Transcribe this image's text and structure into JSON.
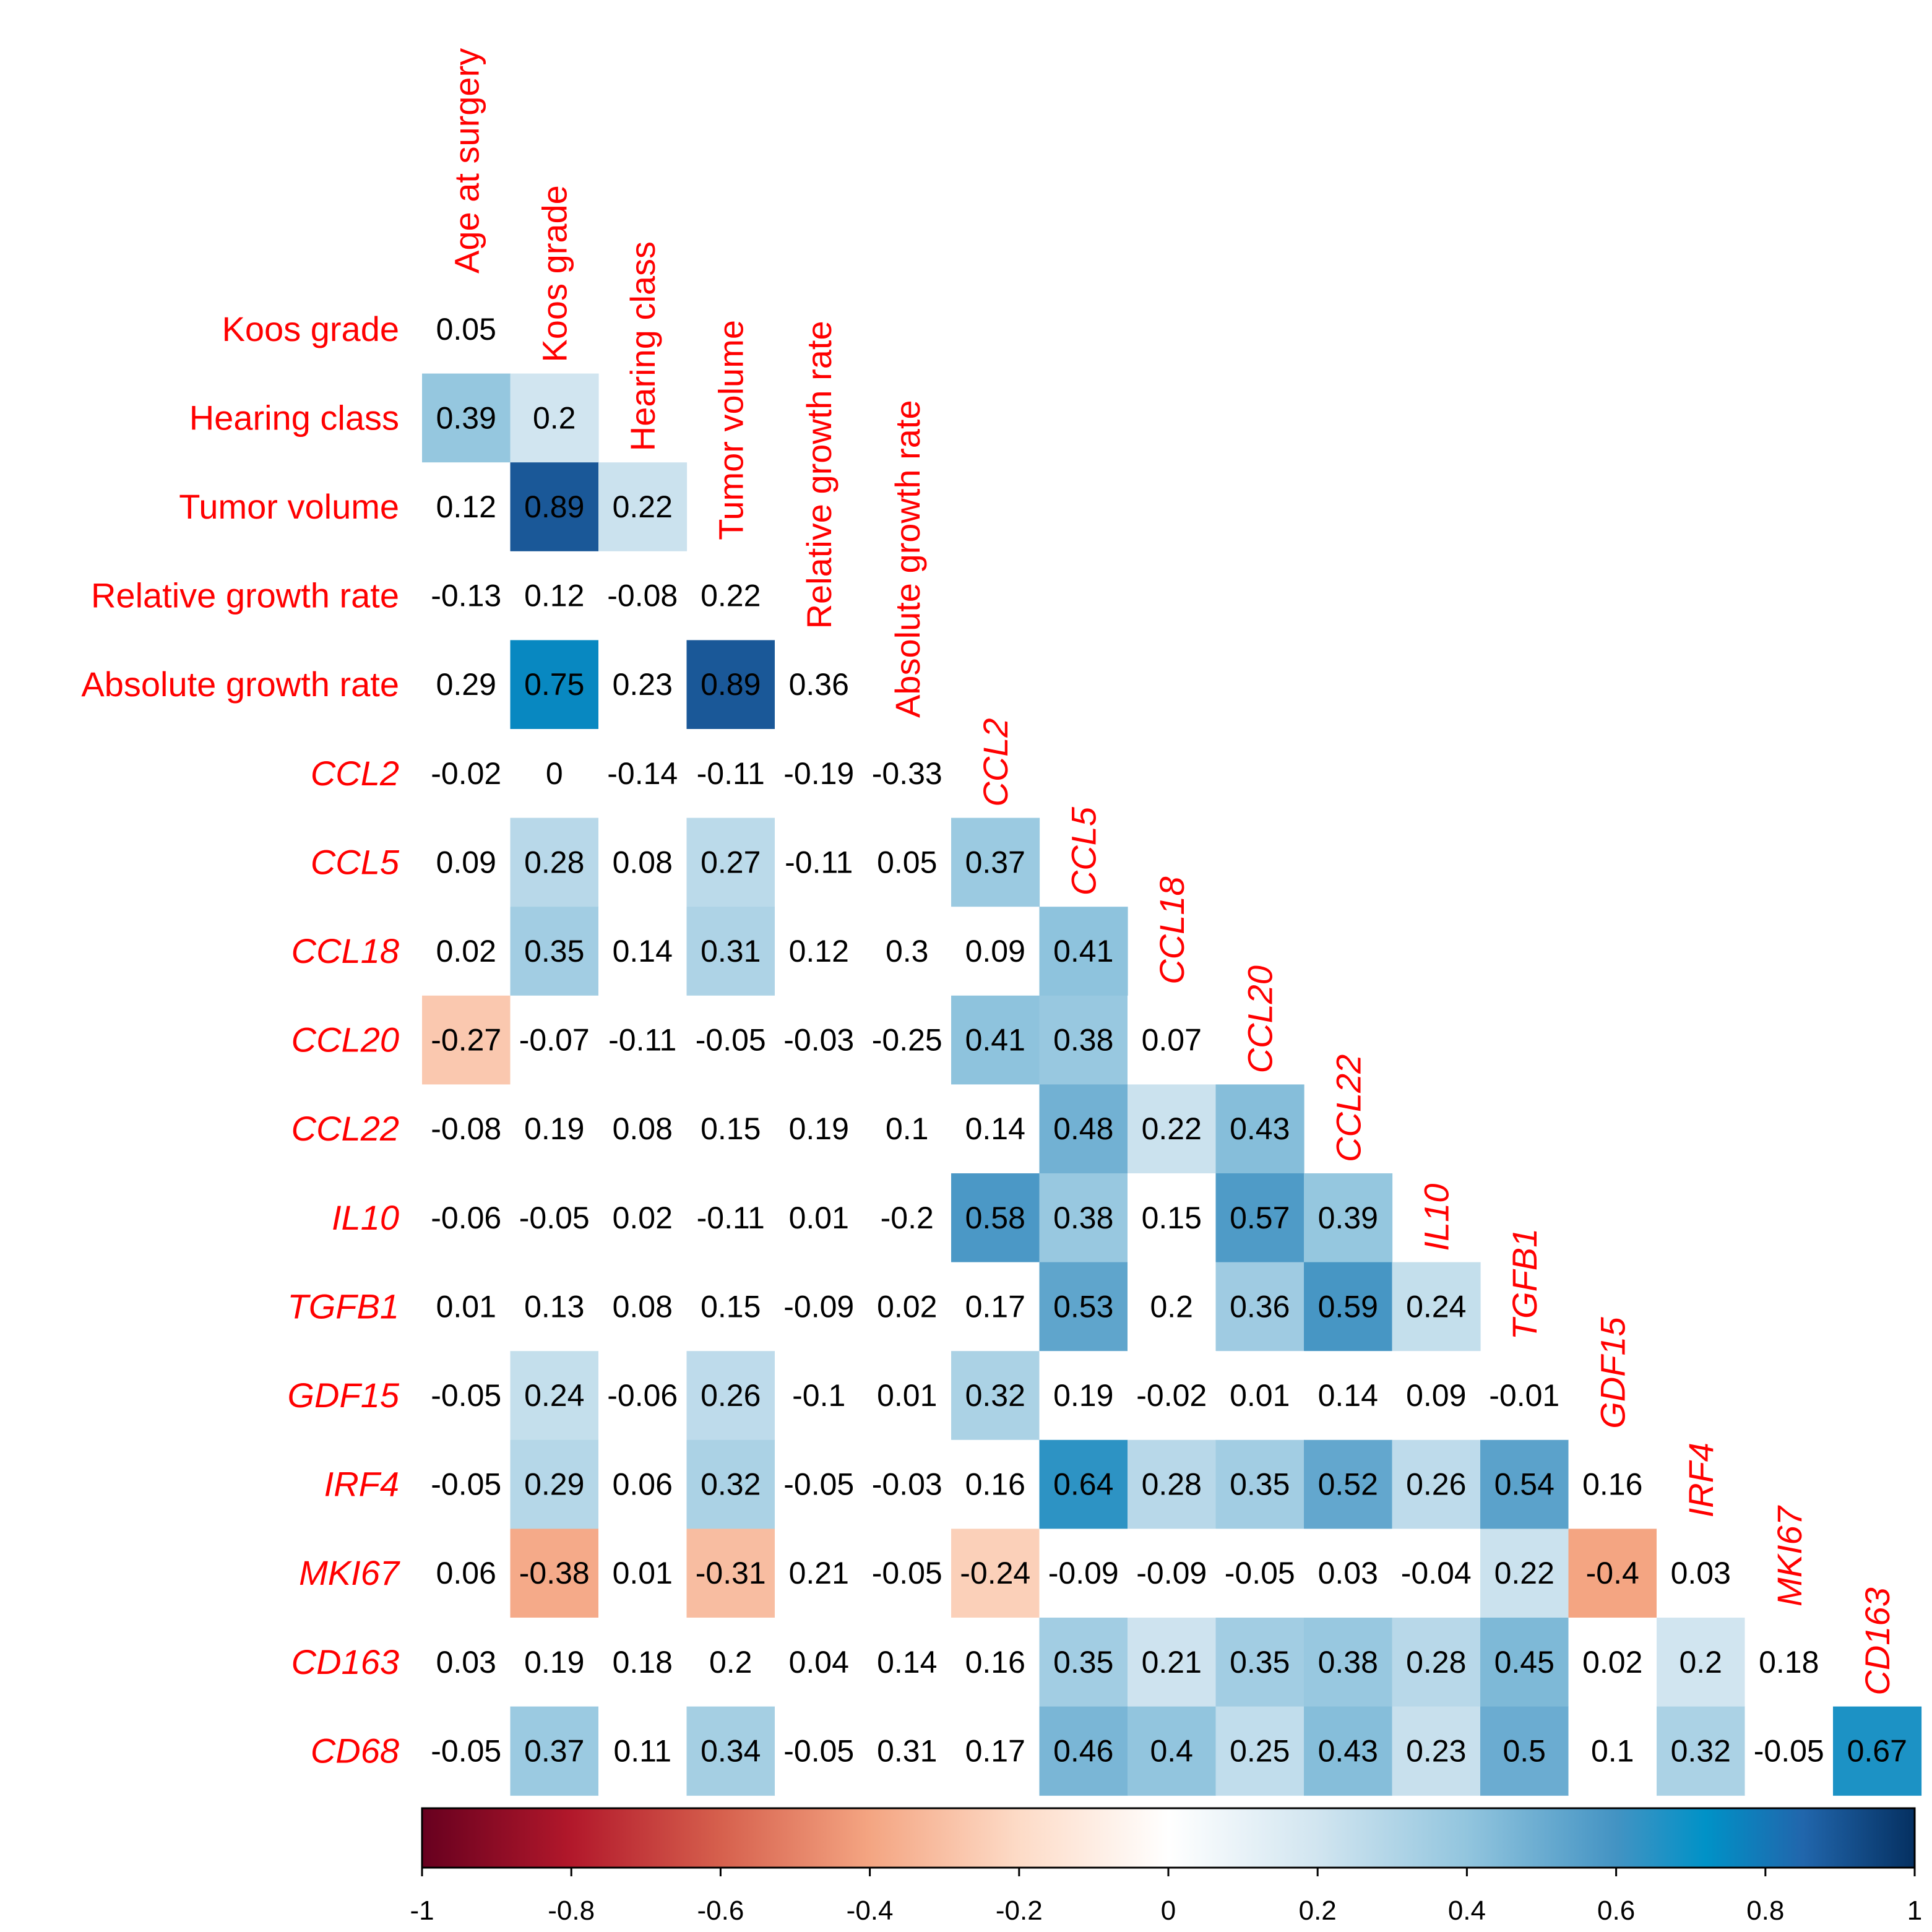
{
  "chart_data": {
    "type": "heatmap",
    "title": "",
    "xlabel": "",
    "ylabel": "",
    "layout": "lower-triangle",
    "column_labels": [
      "Age at surgery",
      "Koos grade",
      "Hearing class",
      "Tumor volume",
      "Relative growth rate",
      "Absolute growth rate",
      "CCL2",
      "CCL5",
      "CCL18",
      "CCL20",
      "CCL22",
      "IL10",
      "TGFB1",
      "GDF15",
      "IRF4",
      "MKI67",
      "CD163"
    ],
    "row_labels": [
      "Koos grade",
      "Hearing class",
      "Tumor volume",
      "Relative growth rate",
      "Absolute growth rate",
      "CCL2",
      "CCL5",
      "CCL18",
      "CCL20",
      "CCL22",
      "IL10",
      "TGFB1",
      "GDF15",
      "IRF4",
      "MKI67",
      "CD163",
      "CD68"
    ],
    "italic_labels": [
      "CCL2",
      "CCL5",
      "CCL18",
      "CCL20",
      "CCL22",
      "IL10",
      "TGFB1",
      "GDF15",
      "IRF4",
      "MKI67",
      "CD163",
      "CD68"
    ],
    "values": [
      [
        0.05
      ],
      [
        0.39,
        0.2
      ],
      [
        0.12,
        0.89,
        0.22
      ],
      [
        -0.13,
        0.12,
        -0.08,
        0.22
      ],
      [
        0.29,
        0.75,
        0.23,
        0.89,
        0.36
      ],
      [
        -0.02,
        0,
        -0.14,
        -0.11,
        -0.19,
        -0.33
      ],
      [
        0.09,
        0.28,
        0.08,
        0.27,
        -0.11,
        0.05,
        0.37
      ],
      [
        0.02,
        0.35,
        0.14,
        0.31,
        0.12,
        0.3,
        0.09,
        0.41
      ],
      [
        -0.27,
        -0.07,
        -0.11,
        -0.05,
        -0.03,
        -0.25,
        0.41,
        0.38,
        0.07
      ],
      [
        -0.08,
        0.19,
        0.08,
        0.15,
        0.19,
        0.1,
        0.14,
        0.48,
        0.22,
        0.43
      ],
      [
        -0.06,
        -0.05,
        0.02,
        -0.11,
        0.01,
        -0.2,
        0.58,
        0.38,
        0.15,
        0.57,
        0.39
      ],
      [
        0.01,
        0.13,
        0.08,
        0.15,
        -0.09,
        0.02,
        0.17,
        0.53,
        0.2,
        0.36,
        0.59,
        0.24
      ],
      [
        -0.05,
        0.24,
        -0.06,
        0.26,
        -0.1,
        0.01,
        0.32,
        0.19,
        -0.02,
        0.01,
        0.14,
        0.09,
        -0.01
      ],
      [
        -0.05,
        0.29,
        0.06,
        0.32,
        -0.05,
        -0.03,
        0.16,
        0.64,
        0.28,
        0.35,
        0.52,
        0.26,
        0.54,
        0.16
      ],
      [
        0.06,
        -0.38,
        0.01,
        -0.31,
        0.21,
        -0.05,
        -0.24,
        -0.09,
        -0.09,
        -0.05,
        0.03,
        -0.04,
        0.22,
        -0.4,
        0.03
      ],
      [
        0.03,
        0.19,
        0.18,
        0.2,
        0.04,
        0.14,
        0.16,
        0.35,
        0.21,
        0.35,
        0.38,
        0.28,
        0.45,
        0.02,
        0.2,
        0.18
      ],
      [
        -0.05,
        0.37,
        0.11,
        0.34,
        -0.05,
        0.31,
        0.17,
        0.46,
        0.4,
        0.25,
        0.43,
        0.23,
        0.5,
        0.1,
        0.32,
        -0.05,
        0.67
      ]
    ],
    "significant_cells": [
      [
        1,
        0
      ],
      [
        1,
        1
      ],
      [
        2,
        1
      ],
      [
        2,
        2
      ],
      [
        4,
        1
      ],
      [
        4,
        3
      ],
      [
        6,
        1
      ],
      [
        6,
        3
      ],
      [
        6,
        6
      ],
      [
        7,
        1
      ],
      [
        7,
        3
      ],
      [
        7,
        7
      ],
      [
        8,
        0
      ],
      [
        8,
        6
      ],
      [
        8,
        7
      ],
      [
        9,
        7
      ],
      [
        9,
        8
      ],
      [
        9,
        9
      ],
      [
        10,
        6
      ],
      [
        10,
        7
      ],
      [
        10,
        9
      ],
      [
        10,
        10
      ],
      [
        11,
        7
      ],
      [
        11,
        9
      ],
      [
        11,
        10
      ],
      [
        11,
        11
      ],
      [
        12,
        1
      ],
      [
        12,
        3
      ],
      [
        12,
        6
      ],
      [
        13,
        1
      ],
      [
        13,
        3
      ],
      [
        13,
        7
      ],
      [
        13,
        8
      ],
      [
        13,
        9
      ],
      [
        13,
        10
      ],
      [
        13,
        11
      ],
      [
        13,
        12
      ],
      [
        14,
        1
      ],
      [
        14,
        3
      ],
      [
        14,
        6
      ],
      [
        14,
        12
      ],
      [
        14,
        13
      ],
      [
        15,
        7
      ],
      [
        15,
        8
      ],
      [
        15,
        9
      ],
      [
        15,
        10
      ],
      [
        15,
        11
      ],
      [
        15,
        12
      ],
      [
        15,
        14
      ],
      [
        16,
        1
      ],
      [
        16,
        3
      ],
      [
        16,
        7
      ],
      [
        16,
        8
      ],
      [
        16,
        9
      ],
      [
        16,
        10
      ],
      [
        16,
        11
      ],
      [
        16,
        12
      ],
      [
        16,
        14
      ],
      [
        16,
        16
      ]
    ],
    "colorbar": {
      "range": [
        -1,
        1
      ],
      "ticks": [
        "-1",
        "-0.8",
        "-0.6",
        "-0.4",
        "-0.2",
        "0",
        "0.2",
        "0.4",
        "0.6",
        "0.8",
        "1"
      ]
    },
    "colors": {
      "label": "#ff0000",
      "scale": [
        "#67001f",
        "#b2182b",
        "#d6604d",
        "#f4a582",
        "#fddbc7",
        "#ffffff",
        "#d1e5f0",
        "#92c5de",
        "#4393c3",
        "#0092c7",
        "#2166ac",
        "#053061"
      ]
    }
  }
}
